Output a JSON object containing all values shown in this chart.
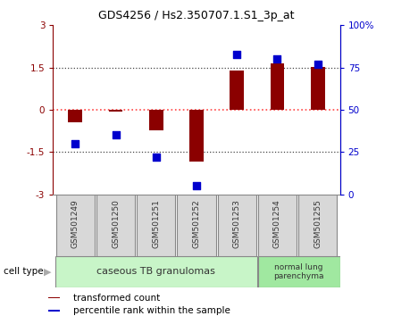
{
  "title": "GDS4256 / Hs2.350707.1.S1_3p_at",
  "samples": [
    "GSM501249",
    "GSM501250",
    "GSM501251",
    "GSM501252",
    "GSM501253",
    "GSM501254",
    "GSM501255"
  ],
  "transformed_counts": [
    -0.45,
    -0.05,
    -0.72,
    -1.85,
    1.4,
    1.65,
    1.52
  ],
  "percentile_ranks": [
    30,
    35,
    22,
    5,
    83,
    80,
    77
  ],
  "ylim_left": [
    -3,
    3
  ],
  "ylim_right": [
    0,
    100
  ],
  "yticks_left": [
    -3,
    -1.5,
    0,
    1.5,
    3
  ],
  "yticks_right": [
    0,
    25,
    50,
    75,
    100
  ],
  "ytick_labels_right": [
    "0",
    "25",
    "50",
    "75",
    "100%"
  ],
  "bar_color": "#8B0000",
  "dot_color": "#0000CD",
  "hline_y0_color": "#FF4444",
  "hline_dotted_color": "#444444",
  "group1_label": "caseous TB granulomas",
  "group1_indices": [
    0,
    1,
    2,
    3,
    4
  ],
  "group2_label": "normal lung\nparenchyma",
  "group2_indices": [
    5,
    6
  ],
  "group1_color": "#c8f5c8",
  "group2_color": "#a0e8a0",
  "cell_type_label": "cell type",
  "legend_bar_label": "transformed count",
  "legend_dot_label": "percentile rank within the sample",
  "bar_width": 0.35,
  "dot_size": 40,
  "box_color": "#d8d8d8",
  "box_edge_color": "#888888"
}
